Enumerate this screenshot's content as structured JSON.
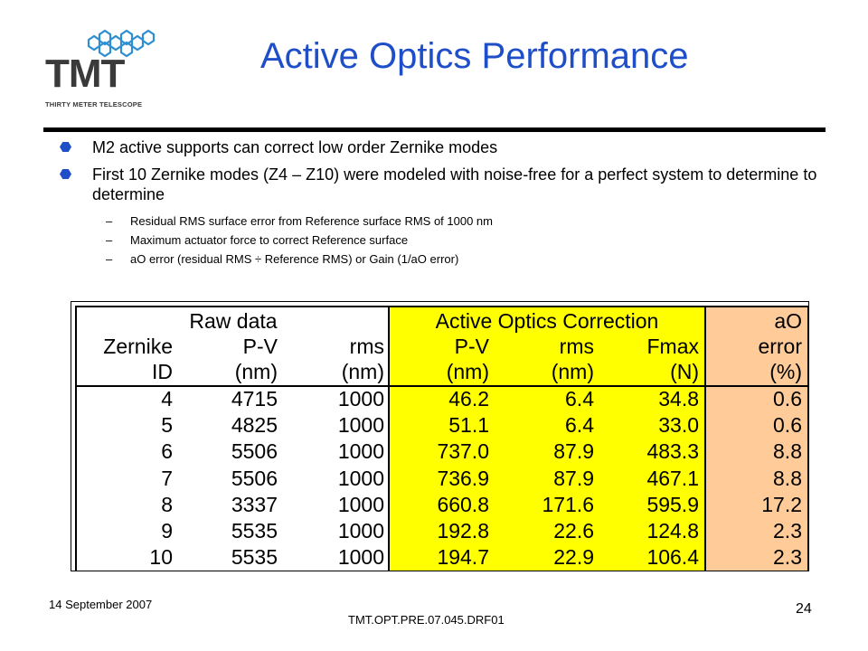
{
  "logo": {
    "text": "TMT",
    "subtitle": "THIRTY METER TELESCOPE"
  },
  "title": "Active Optics Performance",
  "bullets": [
    {
      "text": "M2 active supports can correct low order Zernike modes",
      "sub": []
    },
    {
      "text": "First 10 Zernike modes (Z4 – Z10) were modeled with noise-free for a perfect system to determine to determine",
      "sub": [
        "Residual RMS surface error from Reference surface RMS of 1000 nm",
        "Maximum actuator force to correct Reference surface",
        "aO error (residual RMS ÷ Reference RMS) or Gain (1/aO error)"
      ]
    }
  ],
  "table": {
    "group_headers": {
      "raw": "Raw data",
      "aoc": "Active Optics Correction",
      "ao": "aO"
    },
    "col_headers_1": [
      "Zernike",
      "P-V",
      "rms",
      "P-V",
      "rms",
      "Fmax",
      "error"
    ],
    "col_headers_2": [
      "ID",
      "(nm)",
      "(nm)",
      "(nm)",
      "(nm)",
      "(N)",
      "(%)"
    ],
    "rows": [
      [
        "4",
        "4715",
        "1000",
        "46.2",
        "6.4",
        "34.8",
        "0.6"
      ],
      [
        "5",
        "4825",
        "1000",
        "51.1",
        "6.4",
        "33.0",
        "0.6"
      ],
      [
        "6",
        "5506",
        "1000",
        "737.0",
        "87.9",
        "483.3",
        "8.8"
      ],
      [
        "7",
        "5506",
        "1000",
        "736.9",
        "87.9",
        "467.1",
        "8.8"
      ],
      [
        "8",
        "3337",
        "1000",
        "660.8",
        "171.6",
        "595.9",
        "17.2"
      ],
      [
        "9",
        "5535",
        "1000",
        "192.8",
        "22.6",
        "124.8",
        "2.3"
      ],
      [
        "10",
        "5535",
        "1000",
        "194.7",
        "22.9",
        "106.4",
        "2.3"
      ]
    ],
    "colors": {
      "yellow": "#ffff00",
      "peach": "#ffcc99"
    }
  },
  "footer": {
    "date": "14 September 2007",
    "doc_id": "TMT.OPT.PRE.07.045.DRF01",
    "page": "24"
  }
}
